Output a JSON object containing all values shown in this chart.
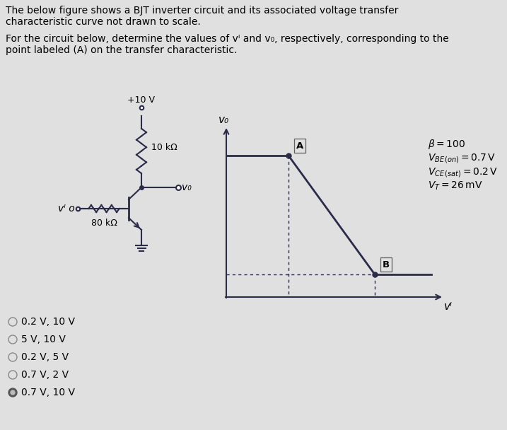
{
  "bg_color": "#e0e0e0",
  "cc": "#2b2b4a",
  "title_line1": "The below figure shows a BJT inverter circuit and its associated voltage transfer",
  "title_line2": "characteristic curve not drawn to scale.",
  "q_line1": "For the circuit below, determine the values of vᴵ and v₀, respectively, corresponding to the",
  "q_line2": "point labeled (A) on the transfer characteristic.",
  "choices": [
    "0.2 V, 10 V",
    "5 V, 10 V",
    "0.2 V, 5 V",
    "0.7 V, 2 V",
    "0.7 V, 10 V"
  ],
  "correct_choice_idx": 4,
  "vcc_label": "+10 V",
  "rc_label": "10 kΩ",
  "rb_label": "80 kΩ",
  "vo_label": "v₀",
  "vi_label": "vᴵ",
  "graph_vo_label": "v₀",
  "graph_vi_label": "vᴵ",
  "param1": "β = 100",
  "param2": "V_{BE (on)} = 0.7 V",
  "param3": "V_{CE (sat)} = 0.2 V",
  "param4": "V_T = 26 mV",
  "pt_A": "A",
  "pt_B": "B",
  "title_fs": 10,
  "q_fs": 10,
  "choice_fs": 10,
  "circuit_text_fs": 9,
  "graph_label_fs": 11,
  "param_fs": 10
}
